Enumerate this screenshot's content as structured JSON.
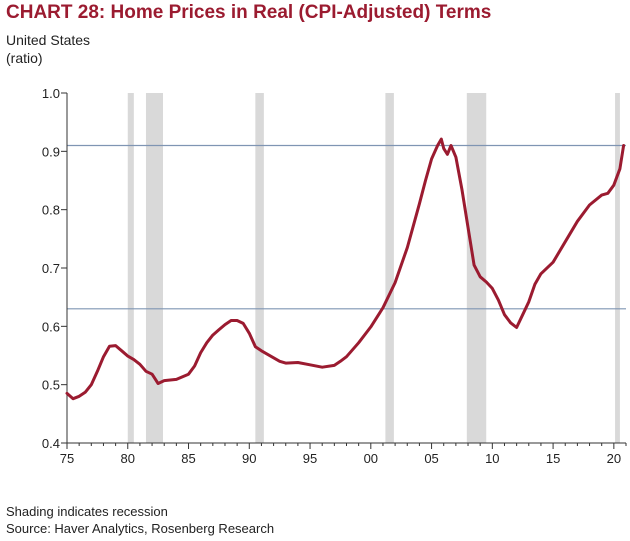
{
  "chart_data": {
    "type": "line",
    "title": "CHART 28: Home Prices in Real (CPI-Adjusted) Terms",
    "subtitle_lines": [
      "United States",
      "(ratio)"
    ],
    "xlabel": "",
    "ylabel": "",
    "xlim": [
      1975,
      2021
    ],
    "ylim": [
      0.4,
      1.0
    ],
    "x_ticks": [
      1975,
      1980,
      1985,
      1990,
      1995,
      2000,
      2005,
      2010,
      2015,
      2020
    ],
    "x_tick_labels": [
      "75",
      "80",
      "85",
      "90",
      "95",
      "00",
      "05",
      "10",
      "15",
      "20"
    ],
    "y_ticks": [
      0.4,
      0.5,
      0.6,
      0.7,
      0.8,
      0.9,
      1.0
    ],
    "y_tick_labels": [
      "0.4",
      "0.5",
      "0.6",
      "0.7",
      "0.8",
      "0.9",
      "1.0"
    ],
    "grid": false,
    "reference_lines": [
      0.91,
      0.63
    ],
    "recessions": [
      [
        1980.0,
        1980.5
      ],
      [
        1981.5,
        1982.9
      ],
      [
        1990.5,
        1991.2
      ],
      [
        2001.2,
        2001.9
      ],
      [
        2007.9,
        2009.5
      ],
      [
        2020.1,
        2020.5
      ]
    ],
    "series": [
      {
        "name": "",
        "color": "#9b1b30",
        "x": [
          1975.0,
          1975.5,
          1976.0,
          1976.5,
          1977.0,
          1977.5,
          1978.0,
          1978.5,
          1979.0,
          1979.5,
          1980.0,
          1980.5,
          1981.0,
          1981.5,
          1982.0,
          1982.5,
          1983.0,
          1983.5,
          1984.0,
          1985.0,
          1985.5,
          1986.0,
          1986.5,
          1987.0,
          1987.5,
          1988.0,
          1988.5,
          1989.0,
          1989.5,
          1990.0,
          1990.5,
          1991.0,
          1991.5,
          1992.0,
          1992.5,
          1993.0,
          1994.0,
          1995.0,
          1996.0,
          1997.0,
          1997.5,
          1998.0,
          1998.5,
          1999.0,
          2000.0,
          2001.0,
          2002.0,
          2003.0,
          2004.0,
          2004.5,
          2005.0,
          2005.5,
          2005.8,
          2006.0,
          2006.3,
          2006.6,
          2007.0,
          2007.5,
          2008.0,
          2008.5,
          2009.0,
          2009.5,
          2010.0,
          2010.5,
          2011.0,
          2011.5,
          2012.0,
          2012.5,
          2013.0,
          2013.5,
          2014.0,
          2015.0,
          2016.0,
          2017.0,
          2018.0,
          2019.0,
          2019.5,
          2020.0,
          2020.5,
          2020.8
        ],
        "y": [
          0.485,
          0.476,
          0.48,
          0.487,
          0.5,
          0.523,
          0.548,
          0.566,
          0.567,
          0.558,
          0.549,
          0.543,
          0.535,
          0.523,
          0.518,
          0.502,
          0.507,
          0.508,
          0.509,
          0.518,
          0.532,
          0.555,
          0.572,
          0.585,
          0.594,
          0.603,
          0.61,
          0.61,
          0.605,
          0.588,
          0.565,
          0.558,
          0.552,
          0.546,
          0.54,
          0.537,
          0.538,
          0.534,
          0.53,
          0.533,
          0.54,
          0.548,
          0.56,
          0.572,
          0.599,
          0.632,
          0.675,
          0.735,
          0.81,
          0.85,
          0.887,
          0.91,
          0.921,
          0.905,
          0.895,
          0.91,
          0.89,
          0.835,
          0.77,
          0.705,
          0.685,
          0.676,
          0.665,
          0.645,
          0.62,
          0.606,
          0.598,
          0.62,
          0.642,
          0.672,
          0.69,
          0.71,
          0.745,
          0.78,
          0.808,
          0.825,
          0.828,
          0.842,
          0.87,
          0.91
        ]
      }
    ]
  },
  "notes": {
    "shading": "Shading indicates recession",
    "source": "Source: Haver Analytics, Rosenberg Research"
  }
}
